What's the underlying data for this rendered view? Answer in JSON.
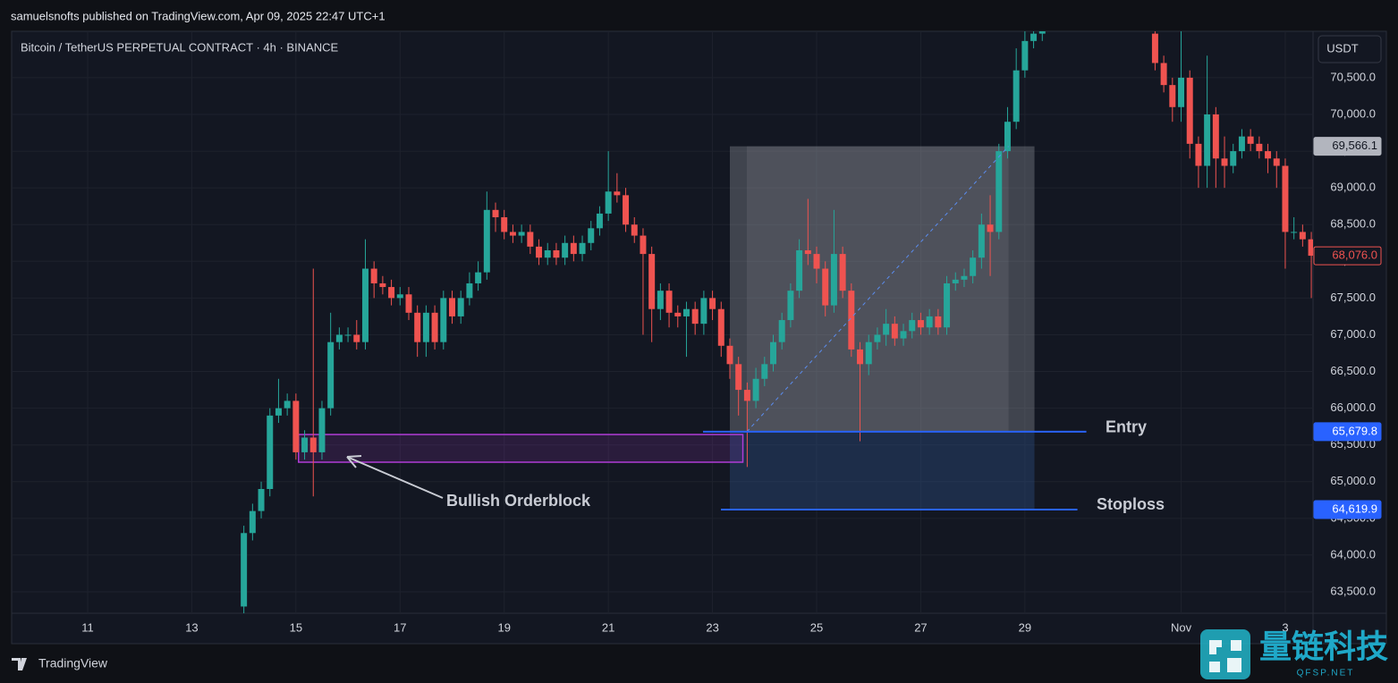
{
  "header": {
    "publisher": "samuelsnofts published on TradingView.com, Apr 09, 2025 22:47 UTC+1"
  },
  "chart_data": {
    "type": "candlestick",
    "title": "Bitcoin / TetherUS PERPETUAL CONTRACT · 4h · BINANCE",
    "currency": "USDT",
    "up_color": "#26a69a",
    "down_color": "#ef5350",
    "grid": true,
    "xlim": [
      -26.76,
      123.2
    ],
    "xticks": [
      {
        "value": -18,
        "label": "11"
      },
      {
        "value": -6,
        "label": "13"
      },
      {
        "value": 6,
        "label": "15"
      },
      {
        "value": 18,
        "label": "17"
      },
      {
        "value": 30,
        "label": "19"
      },
      {
        "value": 42,
        "label": "21"
      },
      {
        "value": 54,
        "label": "23"
      },
      {
        "value": 66,
        "label": "25"
      },
      {
        "value": 78,
        "label": "27"
      },
      {
        "value": 90,
        "label": "29"
      },
      {
        "value": 108,
        "label": "Nov"
      },
      {
        "value": 120,
        "label": "3"
      }
    ],
    "ylim": [
      63208,
      71132
    ],
    "yticks": [
      {
        "value": 63500,
        "label": "63,500.0"
      },
      {
        "value": 64000,
        "label": "64,000.0"
      },
      {
        "value": 64500,
        "label": "64,500.0"
      },
      {
        "value": 65000,
        "label": "65,000.0"
      },
      {
        "value": 65500,
        "label": "65,500.0"
      },
      {
        "value": 66000,
        "label": "66,000.0"
      },
      {
        "value": 66500,
        "label": "66,500.0"
      },
      {
        "value": 67000,
        "label": "67,000.0"
      },
      {
        "value": 67500,
        "label": "67,500.0"
      },
      {
        "value": 68000,
        "label": "68,000.0"
      },
      {
        "value": 68500,
        "label": "68,500.0"
      },
      {
        "value": 69000,
        "label": "69,000.0"
      },
      {
        "value": 69500,
        "label": "69,500.0"
      },
      {
        "value": 70000,
        "label": "70,000.0"
      },
      {
        "value": 70500,
        "label": "70,500.0"
      }
    ],
    "open": [
      63300,
      64300,
      64600,
      64900,
      65900,
      66000,
      66100,
      65400,
      65600,
      65400,
      66000,
      66900,
      67000,
      67000,
      66900,
      67900,
      67700,
      67650,
      67500,
      67550,
      67300,
      66900,
      67300,
      66900,
      67500,
      67250,
      67500,
      67700,
      67850,
      68700,
      68600,
      68400,
      68350,
      68400,
      68200,
      68050,
      68150,
      68050,
      68250,
      68100,
      68250,
      68450,
      68650,
      68950,
      68900,
      68500,
      68350,
      68100,
      67350,
      67600,
      67300,
      67250,
      67350,
      67150,
      67500,
      67350,
      66850,
      66600,
      66250,
      66100,
      66400,
      66600,
      66900,
      67200,
      67600,
      68150,
      68100,
      67900,
      67400,
      68100,
      67600,
      66800,
      66600,
      66900,
      67000,
      67150,
      66950,
      67050,
      67200,
      67100,
      67250,
      67100,
      67700,
      67750,
      67800,
      68050,
      68500,
      68400,
      69500,
      69900,
      70600,
      71000,
      71100,
      null,
      null,
      null,
      null,
      null,
      null,
      null,
      null,
      null,
      null,
      null,
      null,
      71100,
      70700,
      70400,
      70100,
      70500,
      69600,
      69300,
      70000,
      69400,
      69300,
      69500,
      69700,
      69600,
      69500,
      69400,
      69300,
      68400,
      68400,
      68300
    ],
    "high": [
      64400,
      64700,
      65000,
      66000,
      66400,
      66200,
      66200,
      65700,
      67900,
      66100,
      67300,
      67100,
      67100,
      67200,
      68300,
      68000,
      67800,
      67750,
      67650,
      67650,
      67400,
      67400,
      67400,
      67600,
      67600,
      67600,
      67850,
      68000,
      68950,
      68800,
      68700,
      68500,
      68500,
      68500,
      68300,
      68250,
      68250,
      68350,
      68350,
      68350,
      68550,
      68750,
      69500,
      69200,
      69000,
      68600,
      68450,
      68200,
      67700,
      67700,
      67400,
      67450,
      67450,
      67600,
      67600,
      67450,
      66950,
      66700,
      66350,
      66550,
      66700,
      67000,
      67300,
      67700,
      68300,
      68850,
      68200,
      68000,
      68700,
      68200,
      67700,
      66900,
      67000,
      67100,
      67350,
      67250,
      67150,
      67300,
      67300,
      67350,
      67350,
      67800,
      67850,
      67900,
      68150,
      68650,
      68900,
      69600,
      70100,
      70900,
      71300,
      71300,
      71300,
      null,
      null,
      null,
      null,
      null,
      null,
      null,
      null,
      null,
      null,
      null,
      null,
      71200,
      70800,
      70500,
      71200,
      70600,
      69700,
      70800,
      70100,
      69700,
      69600,
      69800,
      69800,
      69700,
      69600,
      69500,
      69400,
      68600,
      68500,
      68400
    ],
    "low": [
      63200,
      64200,
      64500,
      64800,
      65800,
      65900,
      65300,
      65300,
      64800,
      65300,
      65900,
      66800,
      66900,
      66800,
      66800,
      67500,
      67550,
      67400,
      67400,
      67200,
      66700,
      66700,
      66800,
      66800,
      67150,
      67150,
      67400,
      67600,
      67750,
      68400,
      68300,
      68250,
      68250,
      68100,
      67950,
      67950,
      67950,
      67950,
      68000,
      68000,
      68150,
      68350,
      68550,
      68800,
      68400,
      68250,
      67000,
      66900,
      67200,
      67100,
      67100,
      66700,
      67000,
      67000,
      67200,
      66700,
      66400,
      65900,
      65200,
      66000,
      66300,
      66500,
      66800,
      67100,
      67500,
      67950,
      67700,
      67250,
      67300,
      67500,
      66700,
      65550,
      66450,
      66800,
      66850,
      66850,
      66850,
      66950,
      67000,
      67000,
      67000,
      67000,
      67600,
      67650,
      67700,
      67900,
      67800,
      68300,
      69400,
      69800,
      70500,
      70900,
      71000,
      null,
      null,
      null,
      null,
      null,
      null,
      null,
      null,
      null,
      null,
      null,
      null,
      70600,
      70300,
      69900,
      69900,
      69400,
      69000,
      69000,
      69000,
      69000,
      69200,
      69400,
      69500,
      69400,
      69200,
      69000,
      67900,
      68300,
      68200,
      67500
    ],
    "close": [
      64300,
      64600,
      64900,
      65900,
      66000,
      66100,
      65400,
      65600,
      65400,
      66000,
      66900,
      67000,
      67000,
      66900,
      67900,
      67700,
      67650,
      67500,
      67550,
      67300,
      66900,
      67300,
      66900,
      67500,
      67250,
      67500,
      67700,
      67850,
      68700,
      68600,
      68400,
      68350,
      68400,
      68200,
      68050,
      68150,
      68050,
      68250,
      68100,
      68250,
      68450,
      68650,
      68950,
      68900,
      68500,
      68350,
      68100,
      67350,
      67600,
      67300,
      67250,
      67350,
      67150,
      67500,
      67350,
      66850,
      66600,
      66250,
      66100,
      66400,
      66600,
      66900,
      67200,
      67600,
      68150,
      68100,
      67900,
      67400,
      68100,
      67600,
      66800,
      66600,
      66900,
      67000,
      67150,
      66950,
      67050,
      67200,
      67100,
      67250,
      67100,
      67700,
      67750,
      67800,
      68050,
      68500,
      68400,
      69500,
      69900,
      70600,
      71000,
      71100,
      71200,
      null,
      null,
      null,
      null,
      null,
      null,
      null,
      null,
      null,
      null,
      null,
      null,
      70700,
      70400,
      70100,
      70500,
      69600,
      69300,
      70000,
      69400,
      69300,
      69500,
      69700,
      69600,
      69500,
      69400,
      69300,
      68400,
      68400,
      68300,
      68076
    ],
    "last_price": {
      "value": 68076,
      "label": "68,076.0"
    },
    "orderblock": {
      "label": "Bullish Orderblock",
      "top": 65642,
      "bottom": 65265,
      "start": 6.3,
      "end": 57.5,
      "color": "#b03cd6"
    },
    "position": {
      "start": 56,
      "end": 91.1,
      "entry": {
        "text": "Entry",
        "value": 65679.8,
        "label": "65,679.8"
      },
      "stop": {
        "text": "Stoploss",
        "value": 64619.9,
        "label": "64,619.9"
      },
      "target": {
        "value": 69566.1,
        "label": "69,566.1"
      }
    }
  },
  "footer": {
    "brand": "TradingView",
    "watermark": "量链科技",
    "watermark_site": "QFSP.NET"
  }
}
